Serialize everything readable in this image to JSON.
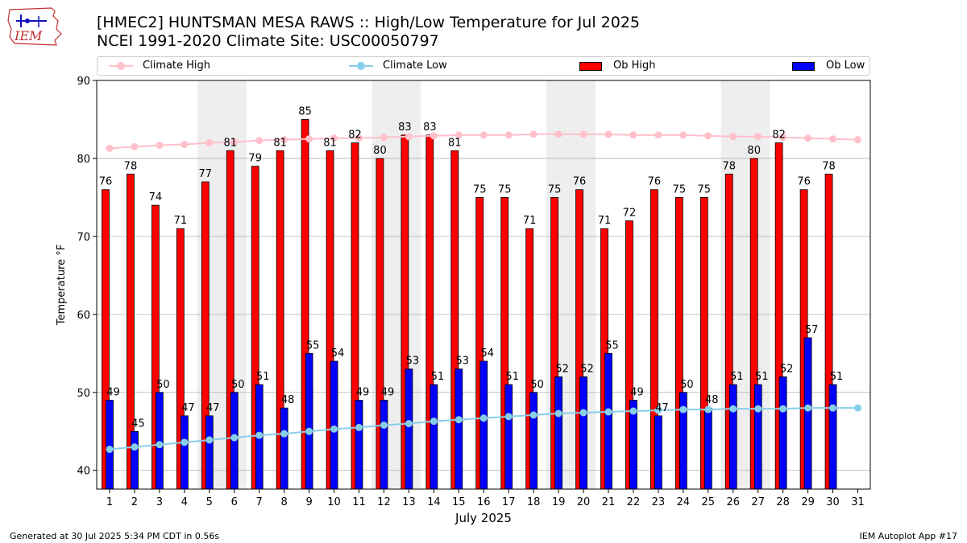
{
  "title_line1": "[HMEC2] HUNTSMAN MESA RAWS :: High/Low Temperature for Jul 2025",
  "title_line2": "NCEI 1991-2020 Climate Site: USC00050797",
  "logo_text": "IEM",
  "footer_left": "Generated at 30 Jul 2025 5:34 PM CDT in 0.56s",
  "footer_right": "IEM Autoplot App #17",
  "colors": {
    "ob_high": "#ff0000",
    "ob_low": "#0000ff",
    "climate_high": "#ffc0cb",
    "climate_low": "#87ceeb",
    "weekend_shade": "#eeeeee",
    "grid": "#b0b0b0"
  },
  "legend": [
    {
      "label": "Climate High",
      "kind": "line",
      "color_key": "climate_high"
    },
    {
      "label": "Climate Low",
      "kind": "line",
      "color_key": "climate_low"
    },
    {
      "label": "Ob High",
      "kind": "bar",
      "color_key": "ob_high"
    },
    {
      "label": "Ob Low",
      "kind": "bar",
      "color_key": "ob_low"
    }
  ],
  "chart_data": {
    "type": "bar",
    "title": "[HMEC2] HUNTSMAN MESA RAWS :: High/Low Temperature for Jul 2025",
    "subtitle": "NCEI 1991-2020 Climate Site: USC00050797",
    "xlabel": "July 2025",
    "ylabel": "Temperature °F",
    "ylim": [
      37.6,
      90
    ],
    "yticks": [
      40,
      50,
      60,
      70,
      80,
      90
    ],
    "grid": "y",
    "legend_position": "top",
    "categories": [
      "1",
      "2",
      "3",
      "4",
      "5",
      "6",
      "7",
      "8",
      "9",
      "10",
      "11",
      "12",
      "13",
      "14",
      "15",
      "16",
      "17",
      "18",
      "19",
      "20",
      "21",
      "22",
      "23",
      "24",
      "25",
      "26",
      "27",
      "28",
      "29",
      "30",
      "31"
    ],
    "weekend_days": [
      [
        5,
        6
      ],
      [
        12,
        13
      ],
      [
        19,
        20
      ],
      [
        26,
        27
      ]
    ],
    "series": [
      {
        "name": "Ob High",
        "kind": "bar",
        "values": [
          76,
          78,
          74,
          71,
          77,
          81,
          79,
          81,
          85,
          81,
          82,
          80,
          83,
          83,
          81,
          75,
          75,
          71,
          75,
          76,
          71,
          72,
          76,
          75,
          75,
          78,
          80,
          82,
          76,
          78,
          null
        ]
      },
      {
        "name": "Ob Low",
        "kind": "bar",
        "values": [
          49,
          45,
          50,
          47,
          47,
          50,
          51,
          48,
          55,
          54,
          49,
          49,
          53,
          51,
          53,
          54,
          51,
          50,
          52,
          52,
          55,
          49,
          47,
          50,
          48,
          51,
          51,
          52,
          57,
          51,
          null
        ]
      },
      {
        "name": "Climate High",
        "kind": "line",
        "values": [
          81.3,
          81.5,
          81.7,
          81.8,
          82.0,
          82.1,
          82.3,
          82.4,
          82.5,
          82.6,
          82.6,
          82.7,
          82.8,
          82.9,
          83.0,
          83.0,
          83.0,
          83.1,
          83.1,
          83.1,
          83.1,
          83.0,
          83.0,
          83.0,
          82.9,
          82.8,
          82.8,
          82.7,
          82.6,
          82.5,
          82.4
        ]
      },
      {
        "name": "Climate Low",
        "kind": "line",
        "values": [
          42.7,
          43.0,
          43.3,
          43.6,
          43.9,
          44.2,
          44.5,
          44.7,
          45.0,
          45.3,
          45.5,
          45.8,
          46.0,
          46.3,
          46.5,
          46.7,
          46.9,
          47.1,
          47.3,
          47.4,
          47.5,
          47.6,
          47.7,
          47.8,
          47.8,
          47.9,
          47.9,
          47.9,
          48.0,
          48.0,
          48.0
        ]
      }
    ]
  }
}
